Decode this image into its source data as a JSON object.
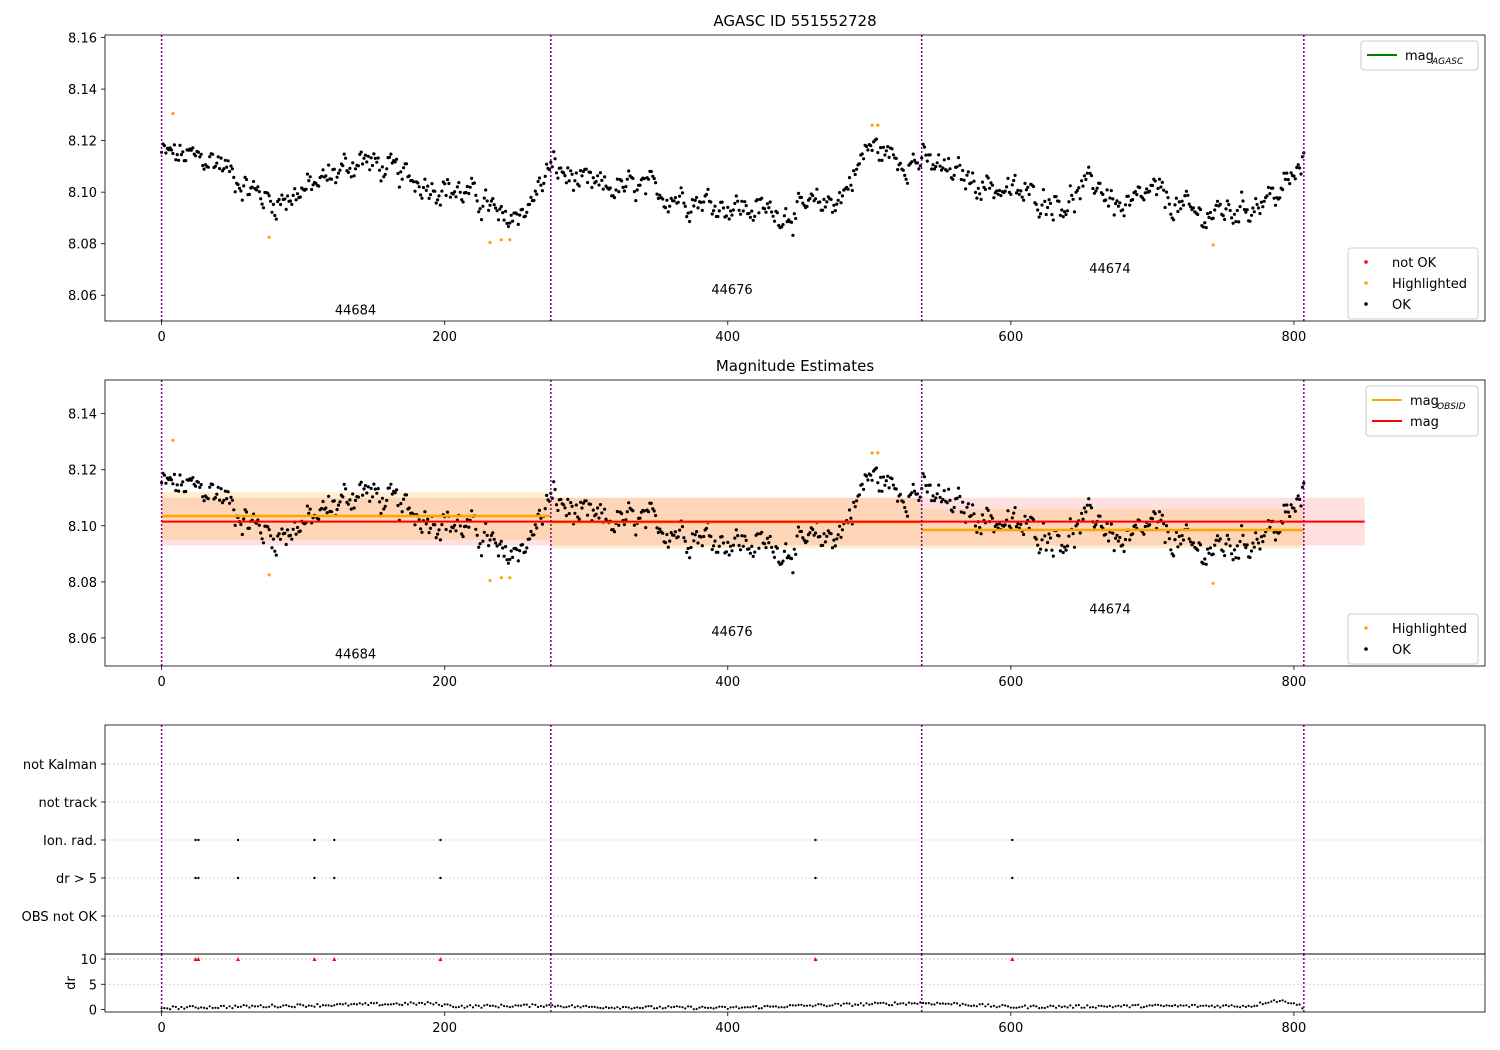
{
  "figure": {
    "x_ticks": [
      "0",
      "200",
      "400",
      "600",
      "800"
    ],
    "mag_ticks": [
      "8.06",
      "8.08",
      "8.10",
      "8.12",
      "8.14"
    ],
    "mag_ticks_top": [
      "8.06",
      "8.08",
      "8.10",
      "8.12",
      "8.14",
      "8.16"
    ],
    "flag_labels": [
      "not Kalman",
      "not track",
      "Ion. rad.",
      "dr > 5",
      "OBS not OK"
    ],
    "dr_ticks": [
      "0",
      "5",
      "10"
    ],
    "dr_label": "dr",
    "obsids": [
      "44684",
      "44676",
      "44674"
    ]
  },
  "chart_data": [
    {
      "type": "scatter",
      "title": "AGASC ID 551552728",
      "xlim": [
        -40,
        935
      ],
      "ylim": [
        8.05,
        8.161
      ],
      "grid": false,
      "obs_boundaries": [
        0,
        275,
        537,
        807
      ],
      "obsids": [
        {
          "label": "44684",
          "x": 137,
          "y": 8.0545
        },
        {
          "label": "44676",
          "x": 403,
          "y": 8.0625
        },
        {
          "label": "44674",
          "x": 670,
          "y": 8.0705
        }
      ],
      "legends": [
        {
          "placement": "upper right",
          "entries": [
            {
              "name": "mag",
              "sub": "AGASC",
              "color": "#008000",
              "kind": "line"
            }
          ]
        },
        {
          "placement": "lower right",
          "entries": [
            {
              "name": "not OK",
              "color": "#ff0000",
              "kind": "point"
            },
            {
              "name": "Highlighted",
              "color": "#ffa500",
              "kind": "point"
            },
            {
              "name": "OK",
              "color": "#000000",
              "kind": "point"
            }
          ]
        }
      ],
      "series": [
        {
          "name": "Highlighted",
          "color": "#ffa500",
          "points": [
            [
              8,
              8.1305
            ],
            [
              76,
              8.0825
            ],
            [
              232,
              8.0805
            ],
            [
              240,
              8.0815
            ],
            [
              246,
              8.0815
            ],
            [
              502,
              8.126
            ],
            [
              506,
              8.126
            ],
            [
              743,
              8.0795
            ]
          ]
        },
        {
          "name": "OK",
          "color": "#000000",
          "generated": "random walk around segment means",
          "trend": [
            [
              0,
              8.115
            ],
            [
              40,
              8.112
            ],
            [
              60,
              8.102
            ],
            [
              80,
              8.096
            ],
            [
              110,
              8.103
            ],
            [
              140,
              8.113
            ],
            [
              170,
              8.106
            ],
            [
              200,
              8.102
            ],
            [
              230,
              8.096
            ],
            [
              240,
              8.088
            ],
            [
              260,
              8.095
            ],
            [
              275,
              8.11
            ],
            [
              300,
              8.102
            ],
            [
              340,
              8.101
            ],
            [
              380,
              8.097
            ],
            [
              420,
              8.093
            ],
            [
              450,
              8.092
            ],
            [
              480,
              8.098
            ],
            [
              500,
              8.118
            ],
            [
              520,
              8.113
            ],
            [
              537,
              8.112
            ],
            [
              560,
              8.107
            ],
            [
              600,
              8.1
            ],
            [
              640,
              8.096
            ],
            [
              660,
              8.104
            ],
            [
              680,
              8.092
            ],
            [
              700,
              8.1
            ],
            [
              730,
              8.091
            ],
            [
              760,
              8.093
            ],
            [
              790,
              8.1
            ],
            [
              807,
              8.11
            ]
          ]
        }
      ]
    },
    {
      "type": "scatter",
      "title": "Magnitude Estimates",
      "xlim": [
        -40,
        935
      ],
      "ylim": [
        8.05,
        8.152
      ],
      "grid": false,
      "obs_boundaries": [
        0,
        275,
        537,
        807
      ],
      "lines": [
        {
          "name": "mag",
          "sub": "OBSID",
          "color": "#ffa500",
          "segments": [
            {
              "x": [
                0,
                275
              ],
              "y": 8.1035,
              "band": [
                8.095,
                8.112
              ]
            },
            {
              "x": [
                275,
                537
              ],
              "y": 8.1013,
              "band": [
                8.092,
                8.11
              ]
            },
            {
              "x": [
                537,
                807
              ],
              "y": 8.0985,
              "band": [
                8.092,
                8.106
              ]
            }
          ]
        },
        {
          "name": "mag",
          "color": "#ff0000",
          "x": [
            0,
            850
          ],
          "y": 8.1015,
          "band": [
            8.093,
            8.11
          ]
        }
      ],
      "legends": [
        {
          "placement": "upper right",
          "entries": [
            {
              "name": "mag",
              "sub": "OBSID",
              "color": "#ffa500",
              "kind": "line"
            },
            {
              "name": "mag",
              "color": "#ff0000",
              "kind": "line"
            }
          ]
        },
        {
          "placement": "lower right",
          "entries": [
            {
              "name": "Highlighted",
              "color": "#ffa500",
              "kind": "point"
            },
            {
              "name": "OK",
              "color": "#000000",
              "kind": "point"
            }
          ]
        }
      ]
    },
    {
      "type": "scatter",
      "title": "",
      "xlim": [
        -40,
        935
      ],
      "categories": [
        "not Kalman",
        "not track",
        "Ion. rad.",
        "dr > 5",
        "OBS not OK"
      ],
      "flags": [
        {
          "category": "Ion. rad.",
          "x": [
            24,
            26,
            54,
            108,
            122,
            197,
            462,
            601
          ]
        },
        {
          "category": "dr > 5",
          "x": [
            24,
            26,
            54,
            108,
            122,
            197,
            462,
            601
          ]
        }
      ],
      "grid": true
    },
    {
      "type": "line",
      "ylabel": "dr",
      "xlim": [
        -40,
        935
      ],
      "ylim": [
        -0.5,
        11
      ],
      "ticks": [
        0,
        5,
        10
      ],
      "markers_at_10": {
        "color": "#ff0000",
        "x": [
          24,
          26,
          54,
          108,
          122,
          197,
          462,
          601
        ]
      },
      "trend": [
        [
          0,
          0.3
        ],
        [
          100,
          0.8
        ],
        [
          190,
          1.2
        ],
        [
          210,
          0.6
        ],
        [
          275,
          0.8
        ],
        [
          300,
          0.5
        ],
        [
          400,
          0.3
        ],
        [
          460,
          0.8
        ],
        [
          537,
          1.3
        ],
        [
          560,
          1.1
        ],
        [
          600,
          0.5
        ],
        [
          700,
          0.7
        ],
        [
          770,
          0.7
        ],
        [
          785,
          1.8
        ],
        [
          800,
          1.4
        ],
        [
          807,
          0.3
        ]
      ]
    }
  ]
}
